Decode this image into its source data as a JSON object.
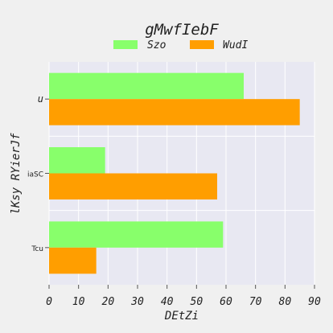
{
  "chart_data": {
    "type": "bar",
    "orientation": "horizontal",
    "title": "gMwfIebF",
    "xlabel": "DEtZi",
    "ylabel": "lKsy RYierJf",
    "categories": [
      "u",
      "iaSC",
      "Tcu"
    ],
    "series": [
      {
        "name": "Szo",
        "color": "#88ff6b",
        "values": [
          66,
          19,
          59
        ]
      },
      {
        "name": "WudI",
        "color": "#ff9e00",
        "values": [
          85,
          57,
          16
        ]
      }
    ],
    "xlim": [
      0,
      90
    ],
    "xticks": [
      0,
      10,
      20,
      30,
      40,
      50,
      60,
      70,
      80,
      90
    ],
    "grid": true,
    "legend": "top-center"
  }
}
